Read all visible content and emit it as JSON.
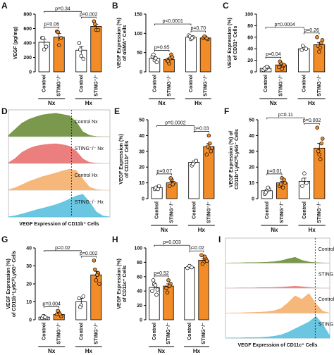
{
  "chart_data": [
    {
      "type": "bar",
      "panel": "A",
      "ylabel": [
        "VEGF (pg/mg)"
      ],
      "groups": [
        "Nx",
        "Hx"
      ],
      "ylim": [
        0,
        800
      ],
      "yticks": [
        0,
        200,
        400,
        600,
        800
      ],
      "series": [
        {
          "name": "Control",
          "color": "#ffffff",
          "values": [
            410,
            300
          ],
          "errors": [
            45,
            50
          ],
          "points": [
            [
              470,
              310,
              350,
              470
            ],
            [
              400,
              220,
              180,
              310
            ]
          ]
        },
        {
          "name": "STING⁻/⁻",
          "color": "#f28c28",
          "values": [
            480,
            630
          ],
          "errors": [
            50,
            30
          ],
          "points": [
            [
              560,
              370,
              470,
              550
            ],
            [
              700,
              580,
              580,
              660
            ]
          ]
        }
      ],
      "annotations": [
        "p=0.06",
        "p=0.34",
        "p=0.002"
      ]
    },
    {
      "type": "bar",
      "panel": "B",
      "ylabel": [
        "VEGF Expression (%)",
        "of αSMA⁺ Cells"
      ],
      "groups": [
        "Nx",
        "Hx"
      ],
      "ylim": [
        0,
        150
      ],
      "yticks": [
        0,
        50,
        100,
        150
      ],
      "series": [
        {
          "name": "Control",
          "color": "#ffffff",
          "values": [
            35,
            90
          ],
          "errors": [
            4,
            2
          ],
          "points": [
            [
              40,
              30,
              25,
              45,
              35
            ],
            [
              95,
              85,
              90,
              92,
              88
            ]
          ]
        },
        {
          "name": "STING⁻/⁻",
          "color": "#f28c28",
          "values": [
            32,
            88
          ],
          "errors": [
            4,
            2
          ],
          "points": [
            [
              30,
              22,
              45,
              28,
              35,
              38
            ],
            [
              88,
              90,
              85,
              92,
              87
            ]
          ]
        }
      ],
      "annotations": [
        "p=0.95",
        "p<0.0001",
        "p=0.70"
      ]
    },
    {
      "type": "bar",
      "panel": "C",
      "ylabel": [
        "VEGF Expression (%)",
        "of CD31⁺ Cells"
      ],
      "groups": [
        "Nx",
        "Hx"
      ],
      "ylim": [
        0,
        100
      ],
      "yticks": [
        0,
        20,
        40,
        60,
        80,
        100
      ],
      "series": [
        {
          "name": "Control",
          "color": "#ffffff",
          "values": [
            6,
            40
          ],
          "errors": [
            1,
            2
          ],
          "points": [
            [
              3,
              5,
              8,
              6,
              9
            ],
            [
              38,
              42,
              40,
              45
            ]
          ]
        },
        {
          "name": "STING⁻/⁻",
          "color": "#f28c28",
          "values": [
            12,
            47
          ],
          "errors": [
            2,
            4
          ],
          "points": [
            [
              8,
              15,
              10,
              18,
              5,
              12
            ],
            [
              60,
              35,
              50,
              45,
              42,
              55
            ]
          ]
        }
      ],
      "annotations": [
        "p=0.04",
        "p=0.0004",
        "p=0.26"
      ]
    },
    {
      "type": "density",
      "panel": "D",
      "xlabel": "VEGF Expression of CD11b⁺ Cells",
      "series": [
        {
          "name": "Control Nx",
          "color": "#6b8e3a",
          "values": [
            5,
            30,
            55,
            70,
            80,
            88,
            92,
            95,
            90,
            85,
            60,
            20,
            5,
            1,
            0,
            0
          ]
        },
        {
          "name": "STING⁻/⁻ Nx",
          "color": "#e8716f",
          "values": [
            3,
            20,
            45,
            60,
            70,
            75,
            78,
            80,
            76,
            70,
            50,
            18,
            4,
            1,
            0,
            0
          ]
        },
        {
          "name": "Control Hx",
          "color": "#f5b06b",
          "values": [
            2,
            10,
            22,
            35,
            45,
            55,
            62,
            70,
            78,
            85,
            80,
            45,
            12,
            3,
            0,
            0
          ]
        },
        {
          "name": "STING⁻/⁻ Hx",
          "color": "#5bc0de",
          "values": [
            1,
            5,
            12,
            20,
            28,
            35,
            42,
            50,
            60,
            72,
            85,
            92,
            60,
            20,
            4,
            0
          ]
        }
      ]
    },
    {
      "type": "bar",
      "panel": "E",
      "ylabel": [
        "VEGF Expression (%)",
        "of CD11b⁺ Cells"
      ],
      "groups": [
        "Nx",
        "Hx"
      ],
      "ylim": [
        0,
        50
      ],
      "yticks": [
        0,
        10,
        20,
        30,
        40,
        50
      ],
      "series": [
        {
          "name": "Control",
          "color": "#ffffff",
          "values": [
            7,
            23
          ],
          "errors": [
            0.5,
            0.8
          ],
          "points": [
            [
              6,
              7,
              8,
              7,
              6
            ],
            [
              21,
              23,
              24,
              22
            ]
          ]
        },
        {
          "name": "STING⁻/⁻",
          "color": "#f28c28",
          "values": [
            10,
            33
          ],
          "errors": [
            1,
            2
          ],
          "points": [
            [
              8,
              12,
              10,
              13,
              9
            ],
            [
              28,
              40,
              30,
              33,
              35,
              32
            ]
          ]
        }
      ],
      "annotations": [
        "p=0.07",
        "p=0.0002",
        "p=0.03"
      ]
    },
    {
      "type": "bar",
      "panel": "F",
      "ylabel": [
        "VEGF Expression (%) of",
        "CD11b⁺Ly6CʰⁱLy6G⁻ Cells"
      ],
      "groups": [
        "Nx",
        "Hx"
      ],
      "ylim": [
        0,
        50
      ],
      "yticks": [
        0,
        10,
        20,
        30,
        40,
        50
      ],
      "series": [
        {
          "name": "Control",
          "color": "#ffffff",
          "values": [
            5,
            11
          ],
          "errors": [
            0.7,
            2
          ],
          "points": [
            [
              3,
              5,
              6,
              4,
              7
            ],
            [
              8,
              16,
              10,
              12
            ]
          ]
        },
        {
          "name": "STING⁻/⁻",
          "color": "#f28c28",
          "values": [
            10,
            32
          ],
          "errors": [
            1,
            3
          ],
          "points": [
            [
              8,
              13,
              12,
              9,
              7,
              10
            ],
            [
              45,
              28,
              35,
              30,
              25,
              38
            ]
          ]
        }
      ],
      "annotations": [
        "p=0.01",
        "p=0.11",
        "p=0.002"
      ]
    },
    {
      "type": "bar",
      "panel": "G",
      "ylabel": [
        "VEGF Expression (%)",
        "of CD11b⁺Ly6CʰⁱLy6G⁺ Cells"
      ],
      "groups": [
        "Nx",
        "Hx"
      ],
      "ylim": [
        0,
        40
      ],
      "yticks": [
        0,
        10,
        20,
        30,
        40
      ],
      "series": [
        {
          "name": "Control",
          "color": "#ffffff",
          "values": [
            1.5,
            10
          ],
          "errors": [
            0.3,
            2
          ],
          "points": [
            [
              1,
              2,
              1,
              2,
              1.5
            ],
            [
              12,
              8,
              13,
              7
            ]
          ]
        },
        {
          "name": "STING⁻/⁻",
          "color": "#f28c28",
          "values": [
            3,
            25
          ],
          "errors": [
            0.5,
            2
          ],
          "points": [
            [
              3,
              4,
              2,
              5,
              3
            ],
            [
              33,
              22,
              26,
              28,
              25,
              20
            ]
          ]
        }
      ],
      "annotations": [
        "p=0.004",
        "p=0.02",
        "p=0.002"
      ]
    },
    {
      "type": "bar",
      "panel": "H",
      "ylabel": [
        "VEGF Expression (%)",
        "of CD11c⁺ Cells"
      ],
      "groups": [
        "Nx",
        "Hx"
      ],
      "ylim": [
        0,
        100
      ],
      "yticks": [
        0,
        20,
        40,
        60,
        80,
        100
      ],
      "series": [
        {
          "name": "Control",
          "color": "#ffffff",
          "values": [
            45,
            73
          ],
          "errors": [
            3,
            1
          ],
          "points": [
            [
              40,
              50,
              35,
              55,
              48,
              42
            ],
            [
              72,
              75,
              73
            ]
          ]
        },
        {
          "name": "STING⁻/⁻",
          "color": "#f28c28",
          "values": [
            47,
            83
          ],
          "errors": [
            3,
            2
          ],
          "points": [
            [
              44,
              55,
              50,
              38,
              47
            ],
            [
              90,
              80,
              85,
              78,
              88,
              82
            ]
          ]
        }
      ],
      "annotations": [
        "p=0.52",
        "p=0.003",
        "p=0.02"
      ]
    },
    {
      "type": "density",
      "panel": "I",
      "xlabel": "VEGF Expression of CD11c⁺ Cells",
      "series": [
        {
          "name": "Control Nx",
          "color": "#6b8e3a",
          "values": [
            0,
            1,
            1,
            2,
            2,
            3,
            4,
            6,
            10,
            18,
            25,
            12,
            5,
            2,
            1,
            0
          ]
        },
        {
          "name": "STING⁻/⁻ Nx",
          "color": "#e8716f",
          "values": [
            0,
            0,
            1,
            1,
            1,
            2,
            2,
            3,
            4,
            6,
            8,
            6,
            3,
            1,
            0,
            0
          ]
        },
        {
          "name": "Control Hx",
          "color": "#f5b06b",
          "values": [
            0,
            1,
            1,
            2,
            3,
            4,
            6,
            10,
            20,
            45,
            75,
            60,
            85,
            40,
            8,
            0
          ]
        },
        {
          "name": "STING⁻/⁻ Hx",
          "color": "#5bc0de",
          "values": [
            0,
            1,
            1,
            2,
            2,
            3,
            5,
            8,
            14,
            25,
            40,
            55,
            70,
            95,
            60,
            10
          ]
        }
      ]
    }
  ]
}
